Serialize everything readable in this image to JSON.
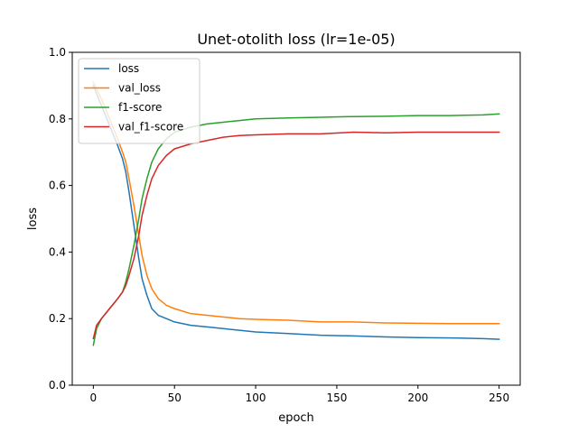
{
  "chart_data": {
    "type": "line",
    "title": "Unet-otolith loss (lr=1e-05)",
    "xlabel": "epoch",
    "ylabel": "loss",
    "xlim": [
      -13,
      263
    ],
    "ylim": [
      0,
      1
    ],
    "xticks": [
      0,
      50,
      100,
      150,
      200,
      250
    ],
    "yticks": [
      0.0,
      0.2,
      0.4,
      0.6,
      0.8,
      1.0
    ],
    "xtick_labels": [
      "0",
      "50",
      "100",
      "150",
      "200",
      "250"
    ],
    "ytick_labels": [
      "0.0",
      "0.2",
      "0.4",
      "0.6",
      "0.8",
      "1.0"
    ],
    "grid": false,
    "legend_position": "upper-left",
    "series": [
      {
        "name": "loss",
        "color": "#1f77b4",
        "points": [
          [
            0,
            0.9
          ],
          [
            5,
            0.84
          ],
          [
            10,
            0.78
          ],
          [
            15,
            0.72
          ],
          [
            18,
            0.68
          ],
          [
            20,
            0.64
          ],
          [
            22,
            0.58
          ],
          [
            25,
            0.48
          ],
          [
            28,
            0.38
          ],
          [
            30,
            0.32
          ],
          [
            33,
            0.27
          ],
          [
            36,
            0.23
          ],
          [
            40,
            0.21
          ],
          [
            45,
            0.2
          ],
          [
            50,
            0.19
          ],
          [
            60,
            0.18
          ],
          [
            70,
            0.175
          ],
          [
            80,
            0.17
          ],
          [
            90,
            0.165
          ],
          [
            100,
            0.16
          ],
          [
            120,
            0.155
          ],
          [
            140,
            0.15
          ],
          [
            160,
            0.148
          ],
          [
            180,
            0.145
          ],
          [
            200,
            0.143
          ],
          [
            220,
            0.142
          ],
          [
            240,
            0.14
          ],
          [
            250,
            0.138
          ]
        ]
      },
      {
        "name": "val_loss",
        "color": "#ff7f0e",
        "points": [
          [
            0,
            0.91
          ],
          [
            5,
            0.86
          ],
          [
            10,
            0.8
          ],
          [
            15,
            0.74
          ],
          [
            18,
            0.7
          ],
          [
            20,
            0.67
          ],
          [
            22,
            0.62
          ],
          [
            25,
            0.54
          ],
          [
            28,
            0.45
          ],
          [
            30,
            0.39
          ],
          [
            33,
            0.33
          ],
          [
            36,
            0.29
          ],
          [
            40,
            0.26
          ],
          [
            45,
            0.24
          ],
          [
            50,
            0.23
          ],
          [
            60,
            0.215
          ],
          [
            70,
            0.21
          ],
          [
            80,
            0.205
          ],
          [
            90,
            0.2
          ],
          [
            100,
            0.198
          ],
          [
            120,
            0.195
          ],
          [
            140,
            0.19
          ],
          [
            160,
            0.19
          ],
          [
            180,
            0.187
          ],
          [
            200,
            0.186
          ],
          [
            220,
            0.185
          ],
          [
            240,
            0.185
          ],
          [
            250,
            0.185
          ]
        ]
      },
      {
        "name": "f1-score",
        "color": "#2ca02c",
        "points": [
          [
            0,
            0.12
          ],
          [
            2,
            0.17
          ],
          [
            5,
            0.2
          ],
          [
            10,
            0.23
          ],
          [
            15,
            0.26
          ],
          [
            18,
            0.28
          ],
          [
            20,
            0.31
          ],
          [
            22,
            0.35
          ],
          [
            25,
            0.42
          ],
          [
            28,
            0.5
          ],
          [
            30,
            0.56
          ],
          [
            33,
            0.62
          ],
          [
            36,
            0.67
          ],
          [
            40,
            0.71
          ],
          [
            45,
            0.74
          ],
          [
            50,
            0.76
          ],
          [
            60,
            0.775
          ],
          [
            70,
            0.785
          ],
          [
            80,
            0.79
          ],
          [
            90,
            0.795
          ],
          [
            100,
            0.8
          ],
          [
            120,
            0.803
          ],
          [
            140,
            0.805
          ],
          [
            160,
            0.807
          ],
          [
            180,
            0.808
          ],
          [
            200,
            0.81
          ],
          [
            220,
            0.81
          ],
          [
            240,
            0.812
          ],
          [
            250,
            0.815
          ]
        ]
      },
      {
        "name": "val_f1-score",
        "color": "#d62728",
        "points": [
          [
            0,
            0.14
          ],
          [
            2,
            0.18
          ],
          [
            5,
            0.2
          ],
          [
            10,
            0.23
          ],
          [
            15,
            0.26
          ],
          [
            18,
            0.28
          ],
          [
            20,
            0.3
          ],
          [
            22,
            0.33
          ],
          [
            25,
            0.38
          ],
          [
            28,
            0.45
          ],
          [
            30,
            0.51
          ],
          [
            33,
            0.57
          ],
          [
            36,
            0.62
          ],
          [
            40,
            0.66
          ],
          [
            45,
            0.69
          ],
          [
            50,
            0.71
          ],
          [
            60,
            0.725
          ],
          [
            70,
            0.735
          ],
          [
            80,
            0.745
          ],
          [
            90,
            0.75
          ],
          [
            100,
            0.752
          ],
          [
            120,
            0.755
          ],
          [
            140,
            0.755
          ],
          [
            160,
            0.76
          ],
          [
            180,
            0.758
          ],
          [
            200,
            0.76
          ],
          [
            220,
            0.76
          ],
          [
            240,
            0.76
          ],
          [
            250,
            0.76
          ]
        ]
      }
    ]
  }
}
